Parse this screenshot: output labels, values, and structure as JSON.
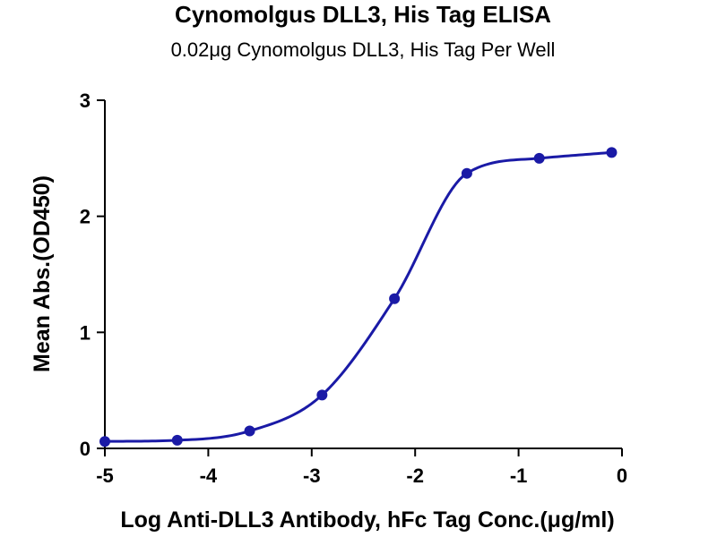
{
  "chart_data": {
    "type": "scatter",
    "title": "Cynomolgus DLL3, His Tag ELISA",
    "subtitle": "0.02μg Cynomolgus DLL3, His Tag Per Well",
    "xlabel": "Log Anti-DLL3 Antibody, hFc Tag Conc.(μg/ml)",
    "ylabel": "Mean Abs.(OD450)",
    "xlim": [
      -5,
      0
    ],
    "ylim": [
      0,
      3
    ],
    "xticks": [
      -5,
      -4,
      -3,
      -2,
      -1,
      0
    ],
    "yticks": [
      0,
      1,
      2,
      3
    ],
    "xtick_labels": [
      "-5",
      "-4",
      "-3",
      "-2",
      "-1",
      "0"
    ],
    "ytick_labels": [
      "0",
      "1",
      "2",
      "3"
    ],
    "grid": false,
    "color": "#1a1aa6",
    "series": [
      {
        "x": [
          -5.0,
          -4.3,
          -3.6,
          -2.9,
          -2.2,
          -1.5,
          -0.8,
          -0.1
        ],
        "y": [
          0.06,
          0.07,
          0.15,
          0.46,
          1.29,
          2.37,
          2.5,
          2.55
        ],
        "fit": "sigmoidal (4PL)"
      }
    ]
  }
}
